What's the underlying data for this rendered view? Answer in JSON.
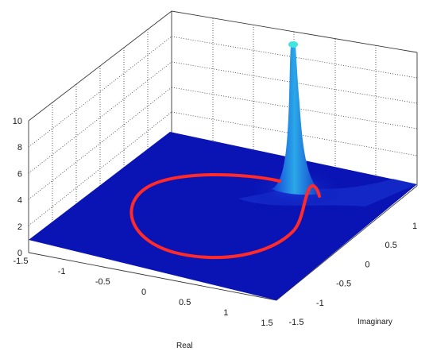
{
  "chart_data": {
    "type": "surface3d",
    "title": "",
    "xlabel": "Real",
    "ylabel": "Imaginary",
    "zlabel": "",
    "x_ticks": [
      "-1.5",
      "-1",
      "-0.5",
      "0",
      "0.5",
      "1",
      "1.5"
    ],
    "y_ticks": [
      "-1.5",
      "-1",
      "-0.5",
      "0",
      "0.5",
      "1"
    ],
    "z_ticks": [
      "0",
      "2",
      "4",
      "6",
      "8",
      "10"
    ],
    "xlim": [
      -1.5,
      1.5
    ],
    "ylim": [
      -1.5,
      1.5
    ],
    "zlim": [
      0,
      10
    ],
    "grid": true,
    "surface": {
      "description_values": "magnitude surface with a single tall pole",
      "pole": {
        "real": 0.9,
        "imag": 0.0,
        "peak_z": 10
      },
      "base_level_z": 0.6
    },
    "curve": {
      "shape": "unit circle",
      "center_real": 0,
      "center_imag": 0,
      "radius": 1,
      "max_z_near_pole": 4.2
    },
    "colors": {
      "surface_base": "#0a14b4",
      "surface_peak": "#2aa7e8",
      "peak_tip": "#3fe6e0",
      "curve": "#ff2a2a"
    }
  }
}
